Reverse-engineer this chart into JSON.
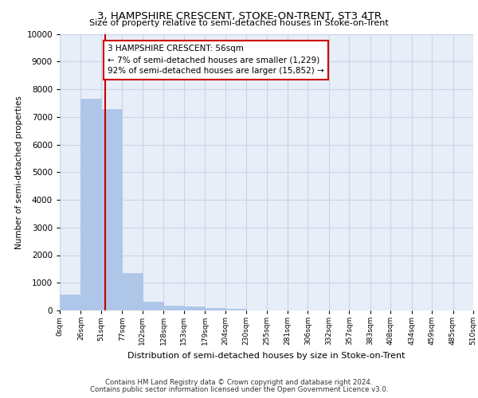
{
  "title": "3, HAMPSHIRE CRESCENT, STOKE-ON-TRENT, ST3 4TR",
  "subtitle": "Size of property relative to semi-detached houses in Stoke-on-Trent",
  "xlabel": "Distribution of semi-detached houses by size in Stoke-on-Trent",
  "ylabel": "Number of semi-detached properties",
  "bar_edges": [
    0,
    26,
    51,
    77,
    102,
    128,
    153,
    179,
    204,
    230,
    255,
    281,
    306,
    332,
    357,
    383,
    408,
    434,
    459,
    485,
    510
  ],
  "bar_heights": [
    570,
    7650,
    7280,
    1360,
    320,
    170,
    130,
    100,
    50,
    0,
    0,
    0,
    0,
    0,
    0,
    0,
    0,
    0,
    0,
    0
  ],
  "bar_color": "#aec6e8",
  "bar_edgecolor": "#aec6e8",
  "property_size": 56,
  "property_line_color": "#cc0000",
  "annotation_text": "3 HAMPSHIRE CRESCENT: 56sqm\n← 7% of semi-detached houses are smaller (1,229)\n92% of semi-detached houses are larger (15,852) →",
  "annotation_box_edgecolor": "#cc0000",
  "ylim": [
    0,
    10000
  ],
  "tick_labels": [
    "0sqm",
    "26sqm",
    "51sqm",
    "77sqm",
    "102sqm",
    "128sqm",
    "153sqm",
    "179sqm",
    "204sqm",
    "230sqm",
    "255sqm",
    "281sqm",
    "306sqm",
    "332sqm",
    "357sqm",
    "383sqm",
    "408sqm",
    "434sqm",
    "459sqm",
    "485sqm",
    "510sqm"
  ],
  "grid_color": "#c8d4e8",
  "background_color": "#e8eef8",
  "footer_line1": "Contains HM Land Registry data © Crown copyright and database right 2024.",
  "footer_line2": "Contains public sector information licensed under the Open Government Licence v3.0."
}
